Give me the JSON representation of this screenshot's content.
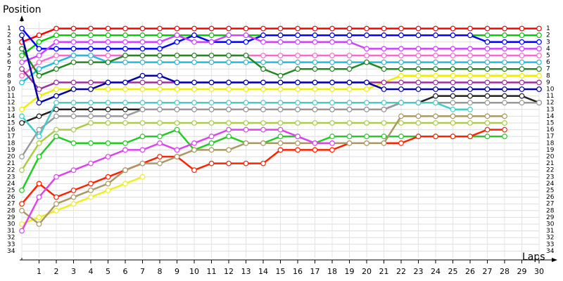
{
  "chart_data": {
    "type": "line",
    "y_axis_title": "Position",
    "x_axis_title": "Laps",
    "categories": [
      null,
      "1",
      "2",
      "3",
      "4",
      "5",
      "6",
      "7",
      "8",
      "9",
      "10",
      "11",
      "12",
      "13",
      "14",
      "15",
      "16",
      "17",
      "18",
      "19",
      "20",
      "21",
      "22",
      "23",
      "24",
      "25",
      "26",
      "27",
      "28",
      "29",
      "30"
    ],
    "ylim": [
      35,
      0
    ],
    "yticks": [
      1,
      2,
      3,
      4,
      5,
      6,
      7,
      8,
      9,
      10,
      11,
      12,
      13,
      14,
      15,
      16,
      17,
      18,
      19,
      20,
      21,
      22,
      23,
      24,
      25,
      26,
      27,
      28,
      29,
      30,
      31,
      32,
      33,
      34
    ],
    "grid": true,
    "series": [
      {
        "color": "#ff0000",
        "values": [
          3,
          2,
          1,
          1,
          1,
          1,
          1,
          1,
          1,
          1,
          1,
          1,
          1,
          1,
          1,
          1,
          1,
          1,
          1,
          1,
          1,
          1,
          1,
          1,
          1,
          1,
          1,
          1,
          1,
          1,
          1
        ]
      },
      {
        "color": "#00cc00",
        "values": [
          5,
          3,
          2,
          2,
          2,
          2,
          2,
          2,
          2,
          2,
          2,
          2,
          2,
          2,
          2,
          2,
          2,
          2,
          2,
          2,
          2,
          2,
          2,
          2,
          2,
          2,
          2,
          2,
          2,
          2,
          2
        ]
      },
      {
        "color": "#0000ff",
        "values": [
          1,
          4,
          4,
          4,
          4,
          4,
          4,
          4,
          4,
          3,
          2,
          3,
          3,
          3,
          2,
          2,
          2,
          2,
          2,
          2,
          2,
          2,
          2,
          2,
          2,
          2,
          2,
          3,
          3,
          3,
          3
        ]
      },
      {
        "color": "#cc44ff",
        "values": [
          6,
          5,
          3,
          3,
          3,
          3,
          3,
          3,
          3,
          2,
          3,
          3,
          2,
          2,
          3,
          3,
          3,
          3,
          3,
          3,
          4,
          4,
          4,
          4,
          4,
          4,
          4,
          4,
          4,
          4,
          4
        ]
      },
      {
        "color": "#ff66cc",
        "values": [
          8,
          6,
          5,
          5,
          5,
          5,
          5,
          5,
          5,
          5,
          5,
          5,
          5,
          5,
          5,
          5,
          5,
          5,
          5,
          5,
          5,
          5,
          5,
          5,
          5,
          5,
          5,
          5,
          5,
          5,
          5
        ]
      },
      {
        "color": "#22bbdd",
        "values": [
          9,
          7,
          6,
          5,
          5,
          6,
          6,
          6,
          6,
          6,
          6,
          6,
          6,
          6,
          6,
          6,
          6,
          6,
          6,
          6,
          6,
          6,
          6,
          6,
          6,
          6,
          6,
          6,
          6,
          6,
          6
        ]
      },
      {
        "color": "#228822",
        "values": [
          4,
          8,
          7,
          6,
          6,
          6,
          5,
          5,
          5,
          5,
          5,
          5,
          5,
          5,
          7,
          8,
          7,
          7,
          7,
          7,
          6,
          7,
          7,
          7,
          7,
          7,
          7,
          7,
          7,
          7,
          7
        ]
      },
      {
        "color": "#eeee00",
        "values": [
          13,
          11,
          10,
          10,
          10,
          10,
          10,
          10,
          10,
          10,
          10,
          10,
          10,
          10,
          10,
          10,
          10,
          10,
          10,
          10,
          10,
          9,
          8,
          8,
          8,
          8,
          8,
          8,
          8,
          8,
          8
        ]
      },
      {
        "color": "#993399",
        "values": [
          7,
          10,
          9,
          9,
          9,
          9,
          9,
          9,
          9,
          9,
          9,
          9,
          9,
          9,
          9,
          9,
          9,
          9,
          9,
          9,
          9,
          9,
          9,
          9,
          9,
          9,
          9,
          9,
          9,
          9,
          9
        ]
      },
      {
        "color": "#0000aa",
        "values": [
          2,
          12,
          11,
          10,
          10,
          9,
          9,
          8,
          8,
          9,
          9,
          9,
          9,
          9,
          9,
          9,
          9,
          9,
          9,
          9,
          9,
          10,
          10,
          10,
          10,
          10,
          10,
          10,
          10,
          10,
          10
        ]
      },
      {
        "color": "#222222",
        "values": [
          15,
          14,
          13,
          13,
          13,
          13,
          13,
          13,
          13,
          13,
          13,
          13,
          13,
          13,
          13,
          13,
          13,
          13,
          13,
          13,
          13,
          13,
          12,
          12,
          11,
          11,
          11,
          11,
          11,
          11,
          12
        ]
      },
      {
        "color": "#999999",
        "values": [
          20,
          16,
          14,
          14,
          14,
          14,
          14,
          13,
          13,
          13,
          13,
          13,
          13,
          13,
          13,
          13,
          13,
          13,
          13,
          13,
          13,
          13,
          12,
          12,
          12,
          12,
          12,
          12,
          12,
          12,
          12
        ]
      },
      {
        "color": "#44cccc",
        "values": [
          14,
          17,
          12,
          12,
          12,
          12,
          12,
          12,
          12,
          12,
          12,
          12,
          12,
          12,
          12,
          12,
          12,
          12,
          12,
          12,
          12,
          12,
          12,
          12,
          12,
          13,
          13,
          null,
          null,
          null,
          null
        ]
      },
      {
        "color": "#aacc44",
        "values": [
          22,
          18,
          16,
          16,
          15,
          15,
          15,
          15,
          15,
          15,
          15,
          15,
          15,
          15,
          15,
          15,
          15,
          15,
          15,
          15,
          15,
          15,
          15,
          15,
          15,
          15,
          15,
          15,
          15,
          null,
          null
        ]
      },
      {
        "color": "#22cc22",
        "values": [
          25,
          20,
          17,
          18,
          18,
          18,
          18,
          17,
          17,
          16,
          19,
          18,
          17,
          18,
          18,
          17,
          17,
          18,
          17,
          17,
          17,
          17,
          17,
          17,
          17,
          17,
          17,
          17,
          17,
          null,
          null
        ]
      },
      {
        "color": "#ff2200",
        "values": [
          27,
          24,
          26,
          25,
          24,
          23,
          22,
          21,
          20,
          20,
          22,
          21,
          21,
          21,
          21,
          19,
          19,
          19,
          19,
          18,
          18,
          18,
          18,
          17,
          17,
          17,
          17,
          16,
          16,
          null,
          null
        ]
      },
      {
        "color": "#eeee22",
        "values": [
          30,
          29,
          28,
          27,
          26,
          25,
          24,
          23,
          null,
          null,
          null,
          null,
          null,
          null,
          null,
          null,
          null,
          null,
          null,
          null,
          null,
          null,
          null,
          null,
          null,
          null,
          null,
          null,
          null,
          null,
          null
        ]
      },
      {
        "color": "#aa9966",
        "values": [
          28,
          30,
          27,
          26,
          25,
          24,
          22,
          21,
          21,
          20,
          19,
          19,
          19,
          18,
          18,
          18,
          18,
          18,
          18,
          18,
          18,
          18,
          14,
          14,
          14,
          14,
          14,
          14,
          14,
          null,
          null
        ]
      },
      {
        "color": "#dd44ee",
        "values": [
          31,
          26,
          23,
          22,
          21,
          20,
          19,
          19,
          18,
          19,
          18,
          17,
          16,
          16,
          16,
          16,
          17,
          18,
          18,
          null,
          null,
          null,
          null,
          null,
          null,
          null,
          null,
          null,
          null,
          null,
          null
        ]
      }
    ]
  }
}
